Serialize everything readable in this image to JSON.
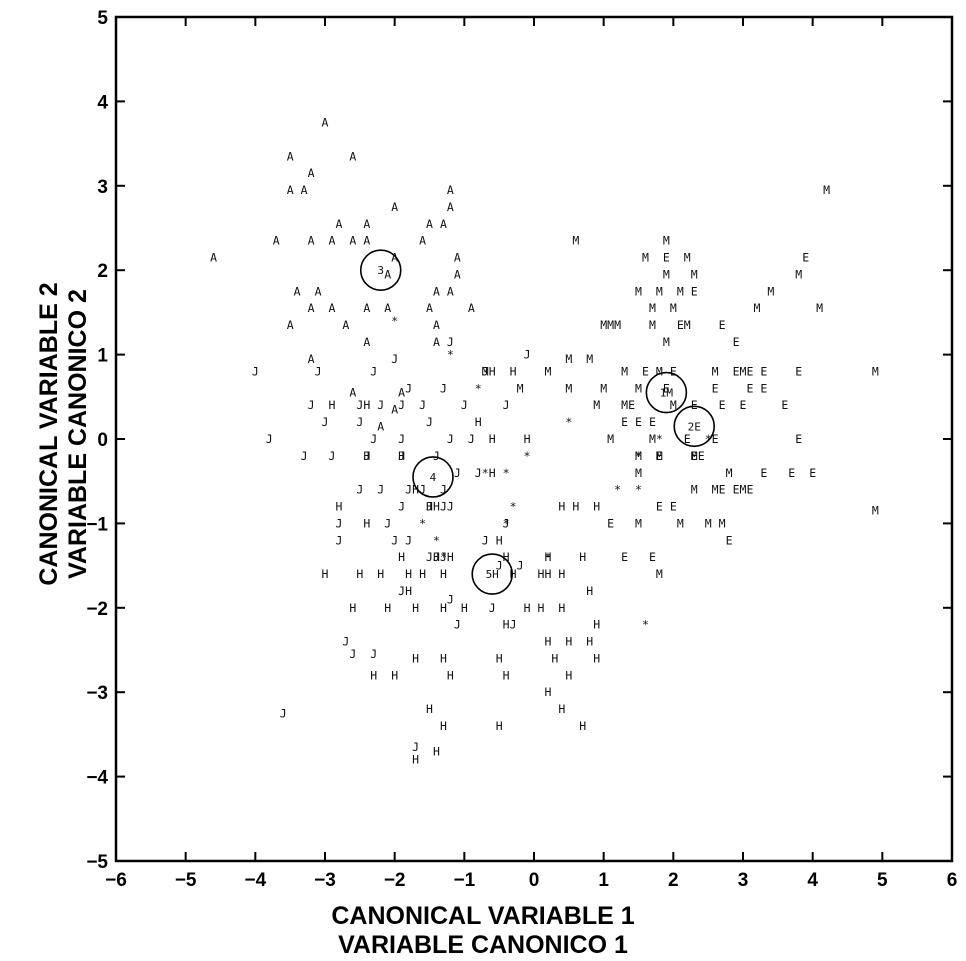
{
  "chart_data": {
    "type": "scatter",
    "title": "",
    "xlabel": [
      "CANONICAL VARIABLE 1",
      "VARIABLE CANONICO 1"
    ],
    "ylabel": [
      "CANONICAL VARIABLE 2",
      "VARIABLE CANONICO 2"
    ],
    "xlim": [
      -6,
      6
    ],
    "ylim": [
      -5,
      5
    ],
    "xticks": [
      "−6",
      "−5",
      "−4",
      "−3",
      "−2",
      "−1",
      "0",
      "1",
      "2",
      "3",
      "4",
      "5",
      "6"
    ],
    "yticks": [
      "−5",
      "−4",
      "−3",
      "−2",
      "−1",
      "0",
      "1",
      "2",
      "3",
      "4",
      "5"
    ],
    "grid": false,
    "series": [
      {
        "x": [
          -3.0,
          -3.5,
          -2.6,
          -3.2,
          -3.5,
          -3.3,
          -2.0,
          -1.2,
          -1.2,
          -2.8,
          -2.4,
          -1.5,
          -1.3,
          -4.6,
          -3.7,
          -3.2,
          -2.9,
          -2.6,
          -2.4,
          -1.6,
          -2.0,
          -1.1,
          -2.1,
          -1.1,
          -3.4,
          -3.1,
          -1.4,
          -1.2,
          -3.2,
          -2.9,
          -2.4,
          -2.1,
          -1.5,
          -0.9,
          -3.5,
          -2.7,
          -1.4,
          -2.4,
          -1.4,
          -3.2,
          -2.6,
          -1.9,
          -2.0,
          -2.2
        ],
        "y": [
          3.75,
          3.35,
          3.35,
          3.15,
          2.95,
          2.95,
          2.75,
          2.95,
          2.75,
          2.55,
          2.55,
          2.55,
          2.55,
          2.15,
          2.35,
          2.35,
          2.35,
          2.35,
          2.35,
          2.35,
          2.15,
          2.15,
          1.95,
          1.95,
          1.75,
          1.75,
          1.75,
          1.75,
          1.55,
          1.55,
          1.55,
          1.55,
          1.55,
          1.55,
          1.35,
          1.35,
          1.35,
          1.15,
          1.15,
          0.95,
          0.55,
          0.55,
          0.35,
          0.15
        ],
        "marker": "A"
      },
      {
        "x": [
          -4.0,
          -3.1,
          -2.3,
          -2.0,
          -1.2,
          -0.1,
          -0.7,
          -1.8,
          -1.3,
          -3.2,
          -2.5,
          -2.2,
          -1.9,
          -1.6,
          -1.0,
          -0.4,
          -3.0,
          -2.5,
          -1.5,
          -3.8,
          -2.3,
          -1.9,
          -1.2,
          -0.9,
          -3.3,
          -2.9,
          -2.4,
          -1.9,
          -1.4,
          -2.5,
          -2.2,
          -1.8,
          -1.6,
          -1.3,
          -1.1,
          -0.8,
          -1.9,
          -1.5,
          -1.3,
          -2.8,
          -2.1,
          -1.2,
          -0.4,
          -2.8,
          -2.0,
          -1.8,
          -1.5,
          -1.9,
          -1.2,
          -0.6,
          -1.1,
          -0.3,
          -1.4,
          -2.7,
          -2.6,
          -2.3,
          -3.6,
          -1.7,
          -1.3,
          -0.7,
          -0.5,
          -0.2
        ],
        "y": [
          0.8,
          0.8,
          0.8,
          0.95,
          1.15,
          1.0,
          0.8,
          0.6,
          0.6,
          0.4,
          0.4,
          0.4,
          0.4,
          0.4,
          0.4,
          0.4,
          0.2,
          0.2,
          0.2,
          0.0,
          0.0,
          0.0,
          0.0,
          0.0,
          -0.2,
          -0.2,
          -0.2,
          -0.2,
          -0.2,
          -0.6,
          -0.6,
          -0.6,
          -0.6,
          -0.6,
          -0.4,
          -0.4,
          -0.8,
          -0.8,
          -0.8,
          -1.0,
          -1.0,
          -0.8,
          -1.0,
          -1.2,
          -1.2,
          -1.2,
          -1.4,
          -1.8,
          -1.9,
          -2.0,
          -2.2,
          -2.2,
          -1.4,
          -2.4,
          -2.55,
          -2.55,
          -3.25,
          -3.65,
          -1.4,
          -1.2,
          -1.5,
          -1.5
        ],
        "marker": "J"
      },
      {
        "x": [
          -2.8,
          -2.9,
          -2.4,
          -2.4,
          -1.9,
          -1.7,
          -1.4,
          -0.8,
          -0.6,
          -0.1,
          -0.3,
          -0.6,
          -0.6,
          -2.4,
          -3.0,
          -2.5,
          -2.2,
          -1.8,
          -1.6,
          -1.3,
          -0.3,
          0.1,
          0.2,
          0.4,
          0.8,
          -1.8,
          -1.9,
          -2.6,
          -2.1,
          -1.7,
          -1.3,
          -1.0,
          -0.1,
          0.1,
          0.4,
          -0.4,
          0.2,
          0.5,
          0.8,
          0.9,
          -1.7,
          -1.3,
          -0.5,
          0.3,
          0.5,
          0.9,
          -2.3,
          -2.0,
          -1.2,
          -1.5,
          -1.3,
          -1.7,
          -1.4,
          -0.5,
          0.2,
          0.4,
          0.7,
          -1.4,
          -1.5,
          -0.5,
          -0.4,
          -1.2,
          -0.4,
          0.2,
          0.6,
          0.7,
          0.4,
          0.9
        ],
        "y": [
          -0.8,
          0.4,
          0.4,
          -0.2,
          -0.2,
          -0.6,
          -0.8,
          0.2,
          0.0,
          0.0,
          0.8,
          0.8,
          -0.4,
          -1.0,
          -1.6,
          -1.6,
          -1.6,
          -1.6,
          -1.6,
          -1.6,
          -1.6,
          -1.6,
          -1.6,
          -1.6,
          -1.8,
          -1.8,
          -1.4,
          -2.0,
          -2.0,
          -2.0,
          -2.0,
          -2.0,
          -2.0,
          -2.0,
          -2.0,
          -2.2,
          -2.4,
          -2.4,
          -2.4,
          -2.2,
          -2.6,
          -2.6,
          -2.6,
          -2.6,
          -2.8,
          -2.6,
          -2.8,
          -2.8,
          -2.8,
          -3.2,
          -3.4,
          -3.8,
          -3.7,
          -3.4,
          -3.0,
          -3.2,
          -3.4,
          -1.4,
          -0.8,
          -1.2,
          -1.4,
          -1.4,
          -2.8,
          -1.4,
          -0.8,
          -1.4,
          -0.8,
          -0.8
        ],
        "marker": "H"
      },
      {
        "x": [
          0.6,
          1.6,
          1.9,
          2.2,
          1.9,
          2.3,
          3.8,
          4.2,
          4.1,
          2.0,
          3.2,
          1.2,
          1.7,
          1.5,
          3.4,
          2.1,
          1.8,
          1.7,
          1.1,
          1.0,
          0.8,
          0.5,
          0.2,
          -0.7,
          1.3,
          1.5,
          1.8,
          1.3,
          0.9,
          1.0,
          -0.2,
          0.5,
          1.1,
          1.7,
          1.8,
          2.3,
          2.8,
          1.5,
          2.3,
          2.6,
          3.0,
          2.5,
          2.1,
          2.7,
          4.9,
          4.9,
          1.9,
          2.2,
          2.6,
          3.0,
          1.5,
          1.8,
          1.5,
          2.0
        ],
        "y": [
          2.35,
          2.15,
          2.35,
          2.15,
          1.95,
          1.95,
          1.95,
          2.95,
          1.55,
          1.55,
          1.55,
          1.35,
          1.55,
          1.75,
          1.75,
          1.75,
          1.75,
          1.35,
          1.35,
          1.35,
          0.95,
          0.95,
          0.8,
          0.8,
          0.8,
          0.6,
          0.8,
          0.4,
          0.4,
          0.6,
          0.6,
          0.6,
          0.0,
          0.0,
          -0.2,
          -0.2,
          -0.4,
          -0.2,
          -0.6,
          -0.6,
          -0.6,
          -1.0,
          -1.0,
          -1.0,
          0.8,
          -0.85,
          1.15,
          1.35,
          0.8,
          0.8,
          -1.0,
          -1.6,
          -0.4,
          0.4
        ],
        "marker": "M"
      },
      {
        "x": [
          1.9,
          3.9,
          2.3,
          2.1,
          2.7,
          2.9,
          3.3,
          3.8,
          3.1,
          3.3,
          3.6,
          1.4,
          1.9,
          2.0,
          2.6,
          2.9,
          3.1,
          1.6,
          1.7,
          2.3,
          2.2,
          2.7,
          3.0,
          2.4,
          1.1,
          1.8,
          2.0,
          2.7,
          2.9,
          3.1,
          3.3,
          3.7,
          4.0,
          1.5,
          1.3,
          1.8,
          2.3,
          2.6,
          3.8,
          1.3,
          1.7,
          2.8
        ],
        "y": [
          2.15,
          2.15,
          1.75,
          1.35,
          1.35,
          1.15,
          0.8,
          0.8,
          0.6,
          0.6,
          0.4,
          0.4,
          0.6,
          0.8,
          0.6,
          0.8,
          0.8,
          0.8,
          0.2,
          0.4,
          0.0,
          0.4,
          0.4,
          -0.2,
          -1.0,
          -0.8,
          -0.8,
          -0.6,
          -0.6,
          -0.6,
          -0.4,
          -0.4,
          -0.4,
          0.2,
          0.2,
          -0.2,
          -0.2,
          0.0,
          0.0,
          -1.4,
          -1.4,
          -1.2
        ],
        "marker": "E"
      },
      {
        "x": [
          -2.0,
          -1.2,
          -0.8,
          0.5,
          1.5,
          1.8,
          2.5,
          1.5,
          -0.1,
          -0.4,
          1.2,
          -0.3,
          0.2,
          -1.6,
          -1.4,
          -1.3,
          -0.4,
          1.6,
          -0.7
        ],
        "y": [
          1.4,
          1.0,
          0.6,
          0.2,
          -0.2,
          0.0,
          0.0,
          -0.6,
          -0.2,
          -0.4,
          -0.6,
          -0.8,
          -1.4,
          -1.0,
          -1.2,
          -1.4,
          -1.0,
          -2.2,
          -0.4
        ],
        "marker": "*"
      }
    ],
    "centroids": [
      {
        "label": "3",
        "x": -2.2,
        "y": 2.0
      },
      {
        "label": "4",
        "x": -1.45,
        "y": -0.45
      },
      {
        "label": "5H",
        "x": -0.6,
        "y": -1.6
      },
      {
        "label": "1M",
        "x": 1.9,
        "y": 0.55
      },
      {
        "label": "2E",
        "x": 2.3,
        "y": 0.15
      }
    ]
  }
}
